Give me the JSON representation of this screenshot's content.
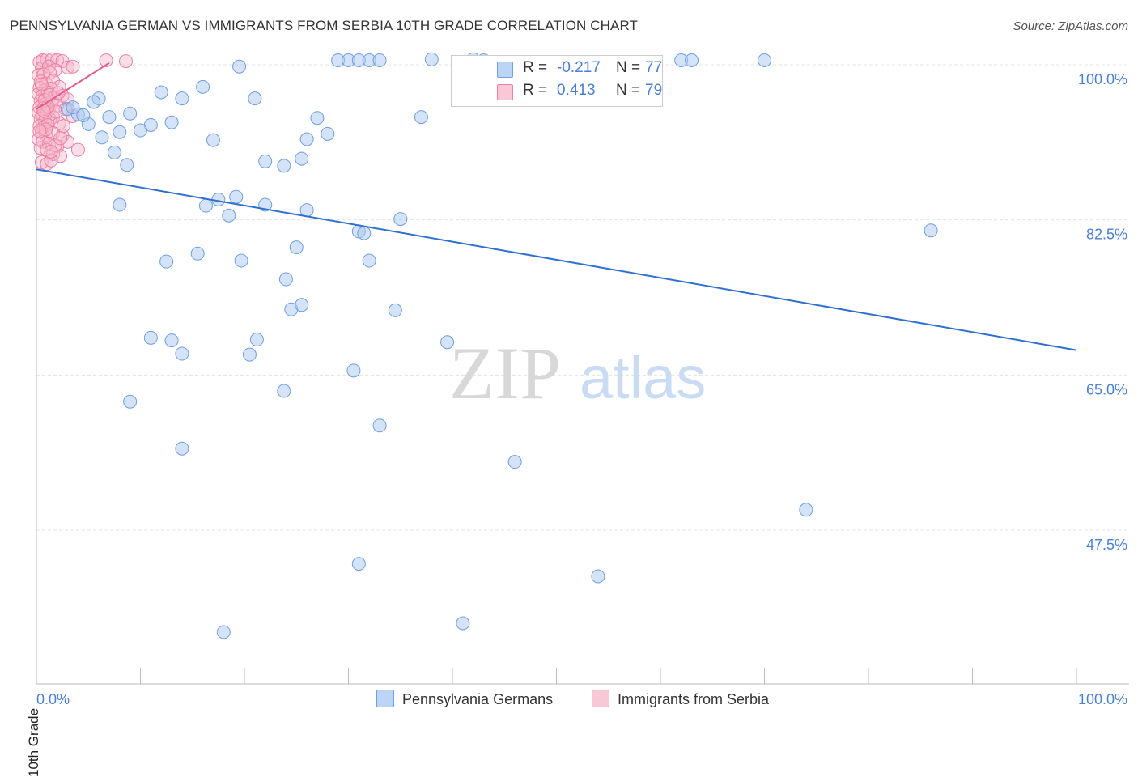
{
  "header": {
    "title": "PENNSYLVANIA GERMAN VS IMMIGRANTS FROM SERBIA 10TH GRADE CORRELATION CHART",
    "source": "Source: ZipAtlas.com"
  },
  "colors": {
    "blue_fill": "#a9c8f0",
    "blue_stroke": "#6f9fe0",
    "blue_line": "#2f6fd0",
    "pink_fill": "#f6b8cc",
    "pink_stroke": "#ec7fa2",
    "pink_line": "#e45b8a",
    "axis_text": "#4a7fd4",
    "grid": "#e4e4e4"
  },
  "legend": {
    "rows": [
      {
        "r_label": "R =",
        "r_value": "-0.217",
        "n_label": "N =",
        "n_value": "77"
      },
      {
        "r_label": "R =",
        "r_value": "0.413",
        "n_label": "N =",
        "n_value": "79"
      }
    ]
  },
  "bottom_legend": {
    "series_a": "Pennsylvania Germans",
    "series_b": "Immigrants from Serbia"
  },
  "watermark": {
    "part1": "ZIP",
    "part2": "atlas"
  },
  "chart_data": {
    "type": "scatter",
    "title": "PENNSYLVANIA GERMAN VS IMMIGRANTS FROM SERBIA 10TH GRADE CORRELATION CHART",
    "xlabel": "",
    "ylabel": "10th Grade",
    "xlim": [
      0,
      100
    ],
    "ylim": [
      29,
      101.5
    ],
    "x_tick_labels": [
      "0.0%",
      "100.0%"
    ],
    "y_ticks": [
      47.5,
      65.0,
      82.5,
      100.0
    ],
    "y_tick_labels": [
      "47.5%",
      "65.0%",
      "82.5%",
      "100.0%"
    ],
    "grid": true,
    "series": [
      {
        "name": "Pennsylvania Germans",
        "r": -0.217,
        "n": 77,
        "trend": {
          "x": [
            0,
            100
          ],
          "y": [
            88.2,
            67.8
          ]
        },
        "points": [
          [
            6,
            96.2
          ],
          [
            3,
            95
          ],
          [
            4,
            94.4
          ],
          [
            5,
            93.3
          ],
          [
            4.5,
            94.3
          ],
          [
            3.5,
            95.2
          ],
          [
            5.5,
            95.8
          ],
          [
            7,
            94.1
          ],
          [
            8,
            92.4
          ],
          [
            6.3,
            91.8
          ],
          [
            7.5,
            90.1
          ],
          [
            8.7,
            88.7
          ],
          [
            11,
            93.2
          ],
          [
            9,
            94.5
          ],
          [
            10,
            92.6
          ],
          [
            12,
            96.9
          ],
          [
            14,
            96.2
          ],
          [
            13,
            93.5
          ],
          [
            16,
            97.5
          ],
          [
            19.5,
            99.8
          ],
          [
            23.8,
            88.6
          ],
          [
            25.5,
            89.4
          ],
          [
            22,
            89.1
          ],
          [
            21,
            96.2
          ],
          [
            17,
            91.5
          ],
          [
            26,
            91.6
          ],
          [
            27,
            94
          ],
          [
            29,
            100.5
          ],
          [
            30,
            100.5
          ],
          [
            31,
            100.5
          ],
          [
            32,
            100.5
          ],
          [
            33,
            100.5
          ],
          [
            38,
            100.6
          ],
          [
            42,
            100.6
          ],
          [
            43,
            100.5
          ],
          [
            37,
            94.1
          ],
          [
            28,
            92.2
          ],
          [
            18.5,
            83
          ],
          [
            16.3,
            84.1
          ],
          [
            8,
            84.2
          ],
          [
            19.2,
            85.1
          ],
          [
            17.5,
            84.8
          ],
          [
            22,
            84.2
          ],
          [
            26,
            83.6
          ],
          [
            31,
            81.2
          ],
          [
            31.5,
            81
          ],
          [
            35,
            82.6
          ],
          [
            32,
            77.9
          ],
          [
            25,
            79.4
          ],
          [
            19.7,
            77.9
          ],
          [
            12.5,
            77.8
          ],
          [
            15.5,
            78.7
          ],
          [
            24,
            75.8
          ],
          [
            24.5,
            72.4
          ],
          [
            25.5,
            72.9
          ],
          [
            34.5,
            72.3
          ],
          [
            11,
            69.2
          ],
          [
            14,
            67.4
          ],
          [
            13,
            68.9
          ],
          [
            20.5,
            67.3
          ],
          [
            21.2,
            69
          ],
          [
            39.5,
            68.7
          ],
          [
            23.8,
            63.2
          ],
          [
            30.5,
            65.5
          ],
          [
            9,
            62
          ],
          [
            33,
            59.3
          ],
          [
            14,
            56.7
          ],
          [
            46,
            55.2
          ],
          [
            74,
            49.8
          ],
          [
            31,
            43.7
          ],
          [
            54,
            42.3
          ],
          [
            18,
            36
          ],
          [
            41,
            37
          ],
          [
            62,
            100.5
          ],
          [
            63,
            100.5
          ],
          [
            70,
            100.5
          ],
          [
            86,
            81.3
          ]
        ]
      },
      {
        "name": "Immigrants from Serbia",
        "r": 0.413,
        "n": 79,
        "trend": {
          "x": [
            0,
            7
          ],
          "y": [
            95,
            100.2
          ]
        },
        "points": [
          [
            0.3,
            100.3
          ],
          [
            0.6,
            100.5
          ],
          [
            1,
            100.6
          ],
          [
            1.5,
            100.6
          ],
          [
            2,
            100.5
          ],
          [
            2.5,
            100.4
          ],
          [
            0.5,
            99.6
          ],
          [
            1.2,
            99.8
          ],
          [
            1.8,
            99.4
          ],
          [
            0.2,
            98.8
          ],
          [
            0.7,
            98.9
          ],
          [
            1.3,
            99.1
          ],
          [
            3,
            99.7
          ],
          [
            3.5,
            99.8
          ],
          [
            0.4,
            98.1
          ],
          [
            0.9,
            97.9
          ],
          [
            1.6,
            98.2
          ],
          [
            2.2,
            97.5
          ],
          [
            0.3,
            97.4
          ],
          [
            0.8,
            97.1
          ],
          [
            1.4,
            97.3
          ],
          [
            0.2,
            96.7
          ],
          [
            0.6,
            96.5
          ],
          [
            1.1,
            96.9
          ],
          [
            1.7,
            96.3
          ],
          [
            2.5,
            96.5
          ],
          [
            3,
            96.1
          ],
          [
            0.4,
            95.9
          ],
          [
            0.9,
            95.6
          ],
          [
            1.5,
            95.8
          ],
          [
            0.3,
            95.2
          ],
          [
            0.7,
            95.1
          ],
          [
            1.2,
            94.9
          ],
          [
            2,
            95.4
          ],
          [
            0.2,
            94.6
          ],
          [
            0.6,
            94.3
          ],
          [
            1,
            94.5
          ],
          [
            1.6,
            94.1
          ],
          [
            0.4,
            93.9
          ],
          [
            0.8,
            93.6
          ],
          [
            1.3,
            93.8
          ],
          [
            2.2,
            93.4
          ],
          [
            0.3,
            93.1
          ],
          [
            0.7,
            92.9
          ],
          [
            1.1,
            93.2
          ],
          [
            0.5,
            92.4
          ],
          [
            0.9,
            92.1
          ],
          [
            1.6,
            92.3
          ],
          [
            2.5,
            92
          ],
          [
            0.2,
            91.6
          ],
          [
            0.6,
            91.3
          ],
          [
            1.2,
            91.1
          ],
          [
            2,
            90.8
          ],
          [
            3,
            91.3
          ],
          [
            0.4,
            90.6
          ],
          [
            1,
            90.4
          ],
          [
            1.6,
            89.9
          ],
          [
            2.3,
            89.7
          ],
          [
            4,
            90.4
          ],
          [
            3.5,
            94.2
          ],
          [
            2.8,
            95
          ],
          [
            0.5,
            89
          ],
          [
            1,
            88.8
          ],
          [
            1.4,
            89.2
          ],
          [
            6.7,
            100.5
          ],
          [
            8.6,
            100.4
          ],
          [
            1.8,
            90.9
          ],
          [
            2.3,
            91.7
          ],
          [
            0.8,
            96
          ],
          [
            1.3,
            96.6
          ],
          [
            0.5,
            97.8
          ],
          [
            1.9,
            94.7
          ],
          [
            2.6,
            93.1
          ],
          [
            0.9,
            92.7
          ],
          [
            1.4,
            90.2
          ],
          [
            0.3,
            92.5
          ],
          [
            1.1,
            95.3
          ],
          [
            2.1,
            96.8
          ],
          [
            0.7,
            94.8
          ]
        ]
      }
    ]
  }
}
